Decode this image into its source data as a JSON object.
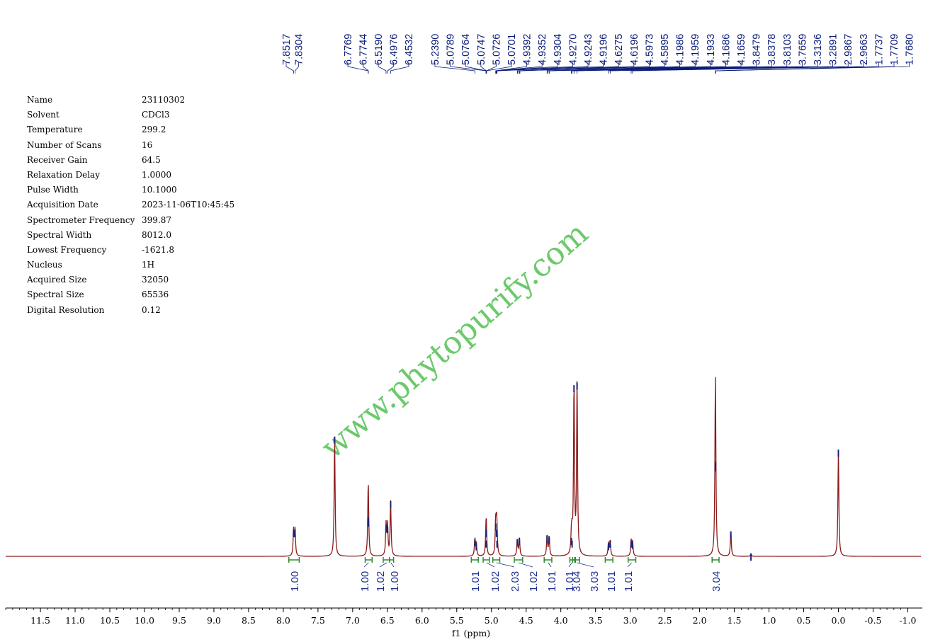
{
  "parameters": [
    {
      "label": "Name",
      "value": "23110302"
    },
    {
      "label": "Solvent",
      "value": "CDCl3"
    },
    {
      "label": "Temperature",
      "value": "299.2"
    },
    {
      "label": "Number of Scans",
      "value": "16"
    },
    {
      "label": "Receiver Gain",
      "value": "64.5"
    },
    {
      "label": "Relaxation Delay",
      "value": "1.0000"
    },
    {
      "label": "Pulse Width",
      "value": "10.1000"
    },
    {
      "label": "Acquisition Date",
      "value": "2023-11-06T10:45:45"
    },
    {
      "label": "Spectrometer Frequency",
      "value": "399.87"
    },
    {
      "label": "Spectral Width",
      "value": "8012.0"
    },
    {
      "label": "Lowest Frequency",
      "value": "-1621.8"
    },
    {
      "label": "Nucleus",
      "value": "1H"
    },
    {
      "label": "Acquired Size",
      "value": "32050"
    },
    {
      "label": "Spectral Size",
      "value": "65536"
    },
    {
      "label": "Digital Resolution",
      "value": "0.12"
    }
  ],
  "watermark": "www.phytopurify.com",
  "colors": {
    "spectrum": "#8b1a1a",
    "peak_top": "#1a237e",
    "peak_label": "#0b1c78",
    "integral": "#2e8b2e",
    "watermark": "#3cb83c"
  },
  "chart_data": {
    "type": "line",
    "title": "",
    "xlabel": "f1 (ppm)",
    "ylabel": "",
    "xlim": [
      12.0,
      -1.0
    ],
    "x_reversed": true,
    "x_ticks": [
      "11.5",
      "11.0",
      "10.5",
      "10.0",
      "9.5",
      "9.0",
      "8.5",
      "8.0",
      "7.5",
      "7.0",
      "6.5",
      "6.0",
      "5.5",
      "5.0",
      "4.5",
      "4.0",
      "3.5",
      "3.0",
      "2.5",
      "2.0",
      "1.5",
      "1.0",
      "0.5",
      "0.0",
      "-0.5",
      "-1.0"
    ],
    "peak_labels": [
      {
        "group": "aromatic",
        "values": [
          "7.8517",
          "7.8304"
        ]
      },
      {
        "group": "olefinic",
        "values": [
          "6.7769",
          "6.7744",
          "6.5190",
          "6.4976",
          "6.4532"
        ]
      },
      {
        "group": "aliphatic",
        "values": [
          "5.2390",
          "5.0789",
          "5.0764",
          "5.0747",
          "5.0726",
          "5.0701",
          "4.9392",
          "4.9352",
          "4.9304",
          "4.9270",
          "4.9243",
          "4.9196",
          "4.6275",
          "4.6196",
          "4.5973",
          "4.5895",
          "4.1986",
          "4.1959",
          "4.1933",
          "4.1686",
          "4.1659",
          "3.8479",
          "3.8378",
          "3.8103",
          "3.7659",
          "3.3136",
          "3.2891",
          "2.9867",
          "2.9663",
          "1.7737",
          "1.7709",
          "1.7680"
        ]
      }
    ],
    "integrals": [
      {
        "x": 7.84,
        "from": 7.92,
        "to": 7.77,
        "value": "1.00"
      },
      {
        "x": 6.77,
        "from": 6.82,
        "to": 6.72,
        "value": "1.00"
      },
      {
        "x": 6.51,
        "from": 6.56,
        "to": 6.47,
        "value": "1.02"
      },
      {
        "x": 6.45,
        "from": 6.47,
        "to": 6.41,
        "value": "1.00"
      },
      {
        "x": 5.24,
        "from": 5.29,
        "to": 5.19,
        "value": "1.01"
      },
      {
        "x": 5.07,
        "from": 5.12,
        "to": 5.03,
        "value": "1.02"
      },
      {
        "x": 4.93,
        "from": 4.98,
        "to": 4.88,
        "value": "2.03"
      },
      {
        "x": 4.61,
        "from": 4.67,
        "to": 4.55,
        "value": "1.02"
      },
      {
        "x": 4.18,
        "from": 4.24,
        "to": 4.13,
        "value": "1.01"
      },
      {
        "x": 3.84,
        "from": 3.87,
        "to": 3.8,
        "value": "1.01"
      },
      {
        "x": 3.81,
        "from": 3.83,
        "to": 3.79,
        "value": "3.04"
      },
      {
        "x": 3.77,
        "from": 3.79,
        "to": 3.73,
        "value": "3.03"
      },
      {
        "x": 3.3,
        "from": 3.36,
        "to": 3.25,
        "value": "1.01"
      },
      {
        "x": 2.98,
        "from": 3.03,
        "to": 2.92,
        "value": "1.01"
      },
      {
        "x": 1.77,
        "from": 1.82,
        "to": 1.72,
        "value": "3.04"
      }
    ],
    "signals": [
      {
        "ppm": 7.8517,
        "h": 0.2
      },
      {
        "ppm": 7.8304,
        "h": 0.2
      },
      {
        "ppm": 7.26,
        "h": 0.91
      },
      {
        "ppm": 6.7769,
        "h": 0.3
      },
      {
        "ppm": 6.7744,
        "h": 0.28
      },
      {
        "ppm": 6.519,
        "h": 0.24
      },
      {
        "ppm": 6.4976,
        "h": 0.23
      },
      {
        "ppm": 6.4532,
        "h": 0.42
      },
      {
        "ppm": 5.239,
        "h": 0.13
      },
      {
        "ppm": 5.219,
        "h": 0.1
      },
      {
        "ppm": 5.0789,
        "h": 0.12
      },
      {
        "ppm": 5.0747,
        "h": 0.2
      },
      {
        "ppm": 4.9392,
        "h": 0.25
      },
      {
        "ppm": 4.927,
        "h": 0.2
      },
      {
        "ppm": 4.9196,
        "h": 0.12
      },
      {
        "ppm": 4.6275,
        "h": 0.13
      },
      {
        "ppm": 4.5973,
        "h": 0.14
      },
      {
        "ppm": 4.1986,
        "h": 0.16
      },
      {
        "ppm": 4.1686,
        "h": 0.15
      },
      {
        "ppm": 3.8479,
        "h": 0.14
      },
      {
        "ppm": 3.8378,
        "h": 0.12
      },
      {
        "ppm": 3.8103,
        "h": 1.3
      },
      {
        "ppm": 3.7659,
        "h": 1.32
      },
      {
        "ppm": 3.3136,
        "h": 0.1
      },
      {
        "ppm": 3.2891,
        "h": 0.12
      },
      {
        "ppm": 2.9867,
        "h": 0.12
      },
      {
        "ppm": 2.9663,
        "h": 0.11
      },
      {
        "ppm": 1.7737,
        "h": 0.7
      },
      {
        "ppm": 1.7709,
        "h": 0.72
      },
      {
        "ppm": 1.55,
        "h": 0.19
      },
      {
        "ppm": 1.26,
        "h": 0.02
      },
      {
        "ppm": 0.0,
        "h": 0.81
      }
    ]
  }
}
